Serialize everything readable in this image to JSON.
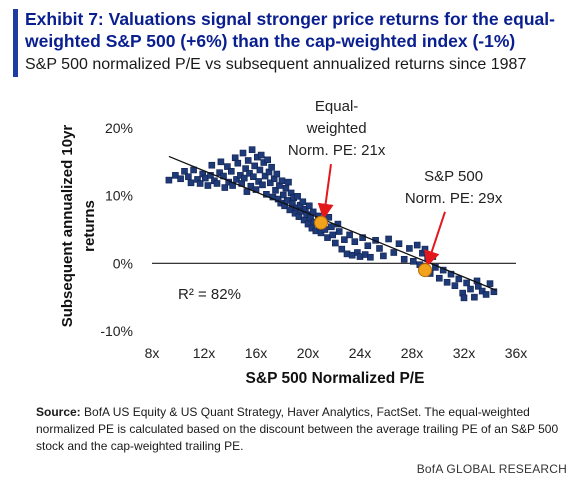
{
  "exhibit": {
    "title": "Exhibit 7: Valuations signal stronger price returns for the equal-weighted S&P 500 (+6%) than the cap-weighted index (-1%)",
    "subtitle": "S&P 500 normalized P/E vs subsequent annualized returns since 1987"
  },
  "source": {
    "label": "Source:",
    "text": " BofA US Equity & US Quant Strategy, Haver Analytics, FactSet. The equal-weighted normalized PE is calculated based on the discount between the average trailing PE of an S&P 500 stock and the cap-weighted trailing PE."
  },
  "footer": {
    "brand": "BofA GLOBAL RESEARCH"
  },
  "chart_data": {
    "type": "scatter",
    "title": "",
    "xlabel": "S&P 500 Normalized P/E",
    "ylabel": "Subsequent annualized 10yr returns",
    "xlim": [
      8,
      36
    ],
    "ylim": [
      -10,
      20
    ],
    "x_ticks": [
      8,
      12,
      16,
      20,
      24,
      28,
      32,
      36
    ],
    "x_tick_labels": [
      "8x",
      "12x",
      "16x",
      "20x",
      "24x",
      "28x",
      "32x",
      "36x"
    ],
    "y_ticks": [
      -10,
      0,
      10,
      20
    ],
    "y_tick_labels": [
      "-10%",
      "0%",
      "10%",
      "20%"
    ],
    "grid": false,
    "colors": {
      "points": "#1f3a78",
      "points_edge": "#0f2150",
      "trendline": "#111111",
      "highlight": "#f2a31c",
      "highlight_edge": "#b56a0a",
      "arrow": "#e3181b",
      "title": "#0a1f8f"
    },
    "trendline": {
      "x": [
        9.3,
        34.5
      ],
      "y": [
        15.8,
        -4.0
      ]
    },
    "r_squared_label": "R² = 82%",
    "highlights": [
      {
        "x": 21,
        "y": 6,
        "label_lines": [
          "Equal-",
          "weighted",
          "Norm. PE: 21x"
        ],
        "label_x": 22.2,
        "label_top_y": 22.5
      },
      {
        "x": 29,
        "y": -1,
        "label_lines": [
          "S&P 500",
          "Norm. PE: 29x"
        ],
        "label_x": 31.2,
        "label_top_y": 12.2
      }
    ],
    "points": [
      [
        9.3,
        12.3
      ],
      [
        9.8,
        13.0
      ],
      [
        10.2,
        12.5
      ],
      [
        10.5,
        13.6
      ],
      [
        10.8,
        12.8
      ],
      [
        11.0,
        11.9
      ],
      [
        11.2,
        13.8
      ],
      [
        11.5,
        12.4
      ],
      [
        11.7,
        11.8
      ],
      [
        11.9,
        13.2
      ],
      [
        12.1,
        12.6
      ],
      [
        12.3,
        11.5
      ],
      [
        12.5,
        13.0
      ],
      [
        12.6,
        14.5
      ],
      [
        12.8,
        12.2
      ],
      [
        13.0,
        11.8
      ],
      [
        13.2,
        13.4
      ],
      [
        13.3,
        15.0
      ],
      [
        13.5,
        12.9
      ],
      [
        13.6,
        11.2
      ],
      [
        13.8,
        14.3
      ],
      [
        13.9,
        12.0
      ],
      [
        14.1,
        13.6
      ],
      [
        14.2,
        11.5
      ],
      [
        14.4,
        15.6
      ],
      [
        14.5,
        12.4
      ],
      [
        14.6,
        14.8
      ],
      [
        14.8,
        13.0
      ],
      [
        14.9,
        11.8
      ],
      [
        15.0,
        16.3
      ],
      [
        15.1,
        12.6
      ],
      [
        15.2,
        14.0
      ],
      [
        15.3,
        10.6
      ],
      [
        15.4,
        15.2
      ],
      [
        15.5,
        13.3
      ],
      [
        15.6,
        11.4
      ],
      [
        15.7,
        16.8
      ],
      [
        15.8,
        12.8
      ],
      [
        15.9,
        14.4
      ],
      [
        16.0,
        10.9
      ],
      [
        16.1,
        15.7
      ],
      [
        16.2,
        12.1
      ],
      [
        16.3,
        13.8
      ],
      [
        16.4,
        16.0
      ],
      [
        16.5,
        11.6
      ],
      [
        16.6,
        14.9
      ],
      [
        16.7,
        12.9
      ],
      [
        16.8,
        10.2
      ],
      [
        16.9,
        15.3
      ],
      [
        17.0,
        13.5
      ],
      [
        17.1,
        11.9
      ],
      [
        17.2,
        14.2
      ],
      [
        17.3,
        9.8
      ],
      [
        17.4,
        12.5
      ],
      [
        17.5,
        10.8
      ],
      [
        17.6,
        13.2
      ],
      [
        17.7,
        9.5
      ],
      [
        17.8,
        11.5
      ],
      [
        17.9,
        8.9
      ],
      [
        18.0,
        12.2
      ],
      [
        18.1,
        10.1
      ],
      [
        18.2,
        8.5
      ],
      [
        18.3,
        11.1
      ],
      [
        18.4,
        9.3
      ],
      [
        18.5,
        12.0
      ],
      [
        18.6,
        7.9
      ],
      [
        18.7,
        10.4
      ],
      [
        18.8,
        8.8
      ],
      [
        18.9,
        9.7
      ],
      [
        19.0,
        7.4
      ],
      [
        19.1,
        8.2
      ],
      [
        19.2,
        9.9
      ],
      [
        19.3,
        6.9
      ],
      [
        19.4,
        8.6
      ],
      [
        19.5,
        7.7
      ],
      [
        19.6,
        9.1
      ],
      [
        19.7,
        6.4
      ],
      [
        19.8,
        8.0
      ],
      [
        19.9,
        7.2
      ],
      [
        20.0,
        5.8
      ],
      [
        20.1,
        8.5
      ],
      [
        20.2,
        6.7
      ],
      [
        20.3,
        5.2
      ],
      [
        20.4,
        7.6
      ],
      [
        20.5,
        6.1
      ],
      [
        20.6,
        4.8
      ],
      [
        20.8,
        7.0
      ],
      [
        20.9,
        5.5
      ],
      [
        21.0,
        4.5
      ],
      [
        21.2,
        6.3
      ],
      [
        21.3,
        5.0
      ],
      [
        21.5,
        3.8
      ],
      [
        21.6,
        6.8
      ],
      [
        21.8,
        5.4
      ],
      [
        21.9,
        4.2
      ],
      [
        22.1,
        3.0
      ],
      [
        22.3,
        5.8
      ],
      [
        22.4,
        4.7
      ],
      [
        22.6,
        2.1
      ],
      [
        22.8,
        3.5
      ],
      [
        23.0,
        1.4
      ],
      [
        23.2,
        4.2
      ],
      [
        23.4,
        1.2
      ],
      [
        23.6,
        3.2
      ],
      [
        23.8,
        1.6
      ],
      [
        24.0,
        1.0
      ],
      [
        24.2,
        3.8
      ],
      [
        24.4,
        1.3
      ],
      [
        24.6,
        2.6
      ],
      [
        24.8,
        0.9
      ],
      [
        25.2,
        3.4
      ],
      [
        25.5,
        2.2
      ],
      [
        25.8,
        1.1
      ],
      [
        26.2,
        3.6
      ],
      [
        26.6,
        1.6
      ],
      [
        27.0,
        2.9
      ],
      [
        27.4,
        0.6
      ],
      [
        27.8,
        2.2
      ],
      [
        28.1,
        0.3
      ],
      [
        28.4,
        2.7
      ],
      [
        28.6,
        -0.2
      ],
      [
        28.8,
        1.5
      ],
      [
        29.0,
        2.1
      ],
      [
        29.2,
        0.8
      ],
      [
        29.4,
        -1.5
      ],
      [
        29.6,
        1.0
      ],
      [
        29.8,
        -0.6
      ],
      [
        30.1,
        -2.2
      ],
      [
        30.4,
        -1.0
      ],
      [
        30.7,
        -2.8
      ],
      [
        31.0,
        -1.6
      ],
      [
        31.3,
        -3.3
      ],
      [
        31.6,
        -2.3
      ],
      [
        31.9,
        -4.4
      ],
      [
        32.2,
        -2.9
      ],
      [
        32.5,
        -3.8
      ],
      [
        32.8,
        -5.0
      ],
      [
        33.1,
        -3.4
      ],
      [
        33.4,
        -4.1
      ],
      [
        33.7,
        -4.6
      ],
      [
        34.0,
        -3.0
      ],
      [
        34.3,
        -4.2
      ],
      [
        32.0,
        -5.1
      ],
      [
        33.0,
        -2.6
      ]
    ]
  }
}
